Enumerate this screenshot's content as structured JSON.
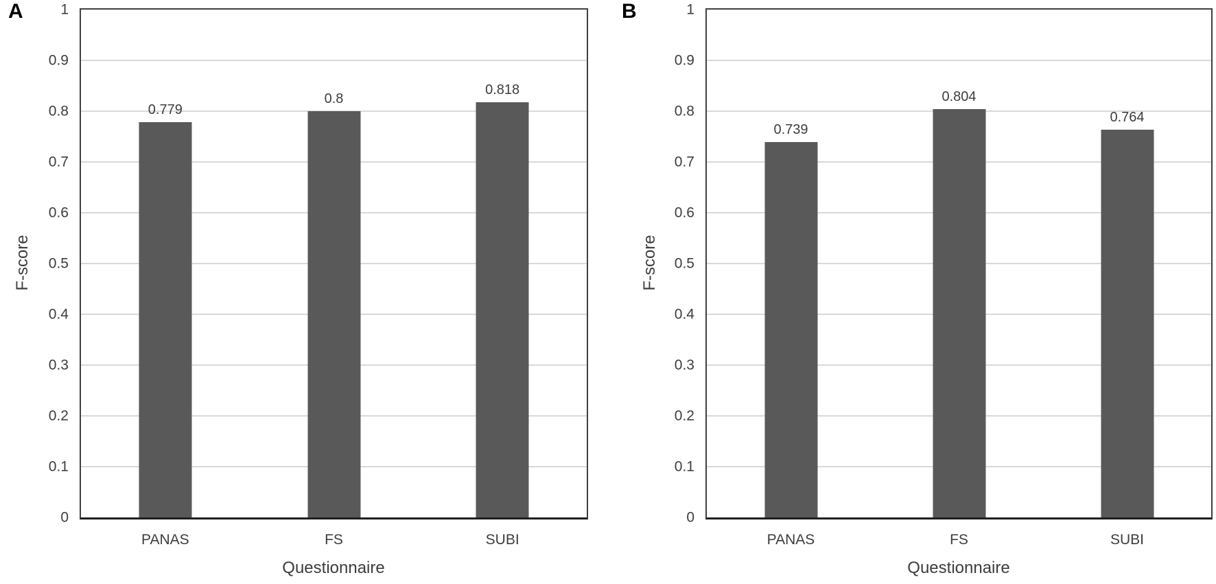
{
  "figure": {
    "background": "#ffffff",
    "panels": [
      "A",
      "B"
    ]
  },
  "colors": {
    "bar": "#595959",
    "gridline": "#d9d9d9",
    "plot_border": "#3f3f3f",
    "axis_line": "#1f1f1f",
    "text": "#3d3d3d",
    "panel_label": "#000000"
  },
  "chart_data": [
    {
      "type": "bar",
      "panel_label": "A",
      "xlabel": "Questionnaire",
      "ylabel": "F-score",
      "categories": [
        "PANAS",
        "FS",
        "SUBI"
      ],
      "values": [
        0.779,
        0.8,
        0.818
      ],
      "value_labels": [
        "0.779",
        "0.8",
        "0.818"
      ],
      "ylim": [
        0,
        1
      ],
      "ytick_values": [
        0,
        0.1,
        0.2,
        0.3,
        0.4,
        0.5,
        0.6,
        0.7,
        0.8,
        0.9,
        1
      ],
      "ytick_labels": [
        "0",
        "0.1",
        "0.2",
        "0.3",
        "0.4",
        "0.5",
        "0.6",
        "0.7",
        "0.8",
        "0.9",
        "1"
      ],
      "grid": "horizontal",
      "legend": "none",
      "bar_color": "#595959"
    },
    {
      "type": "bar",
      "panel_label": "B",
      "xlabel": "Questionnaire",
      "ylabel": "F-score",
      "categories": [
        "PANAS",
        "FS",
        "SUBI"
      ],
      "values": [
        0.739,
        0.804,
        0.764
      ],
      "value_labels": [
        "0.739",
        "0.804",
        "0.764"
      ],
      "ylim": [
        0,
        1
      ],
      "ytick_values": [
        0,
        0.1,
        0.2,
        0.3,
        0.4,
        0.5,
        0.6,
        0.7,
        0.8,
        0.9,
        1
      ],
      "ytick_labels": [
        "0",
        "0.1",
        "0.2",
        "0.3",
        "0.4",
        "0.5",
        "0.6",
        "0.7",
        "0.8",
        "0.9",
        "1"
      ],
      "grid": "horizontal",
      "legend": "none",
      "bar_color": "#595959"
    }
  ]
}
